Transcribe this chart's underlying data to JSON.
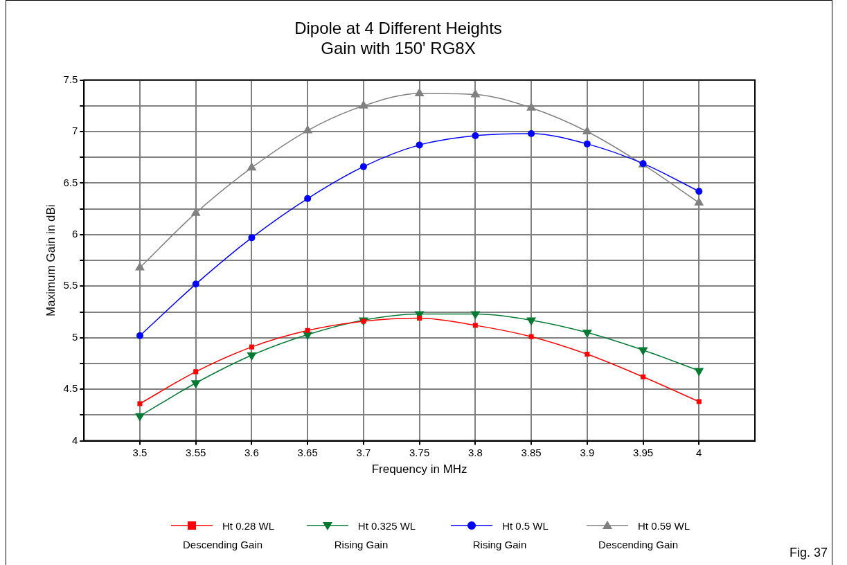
{
  "chart_data": {
    "type": "line",
    "title": "Dipole at 4 Different Heights",
    "subtitle": "Gain with 150' RG8X",
    "xlabel": "Frequency in MHz",
    "ylabel": "Maximum Gain in dBi",
    "x": [
      3.5,
      3.55,
      3.6,
      3.65,
      3.7,
      3.75,
      3.8,
      3.85,
      3.9,
      3.95,
      4
    ],
    "series": [
      {
        "name": "Ht 0.28 WL\nDescending Gain",
        "color": "#ff0000",
        "marker": "square",
        "values": [
          4.36,
          4.67,
          4.91,
          5.07,
          5.16,
          5.19,
          5.12,
          5.01,
          4.84,
          4.62,
          4.38
        ]
      },
      {
        "name": "Ht 0.325 WL\nRising Gain",
        "color": "#007a33",
        "marker": "triangle-down",
        "values": [
          4.24,
          4.56,
          4.83,
          5.03,
          5.17,
          5.23,
          5.23,
          5.17,
          5.05,
          4.88,
          4.68
        ]
      },
      {
        "name": "Ht 0.5 WL\nRising Gain",
        "color": "#0000ff",
        "marker": "circle",
        "values": [
          5.02,
          5.52,
          5.97,
          6.35,
          6.66,
          6.87,
          6.96,
          6.98,
          6.88,
          6.69,
          6.42
        ]
      },
      {
        "name": "Ht 0.59 WL\nDescending Gain",
        "color": "#808080",
        "marker": "triangle",
        "values": [
          5.68,
          6.21,
          6.65,
          7.01,
          7.25,
          7.37,
          7.36,
          7.23,
          7.0,
          6.68,
          6.31
        ]
      }
    ],
    "xlim": [
      3.45,
      4.05
    ],
    "xticks": [
      3.5,
      3.55,
      3.6,
      3.65,
      3.7,
      3.75,
      3.8,
      3.85,
      3.9,
      3.95,
      4
    ],
    "ylim": [
      4,
      7.5
    ],
    "yticks": [
      4,
      {
        "value": 4.25,
        "label": null
      },
      4.5,
      {
        "value": 4.75,
        "label": null
      },
      5,
      {
        "value": 5.25,
        "label": null
      },
      5.5,
      {
        "value": 5.75,
        "label": null
      },
      6,
      {
        "value": 6.25,
        "label": null
      },
      6.5,
      {
        "value": 6.75,
        "label": null
      },
      7,
      {
        "value": 7.25,
        "label": null
      },
      7.5
    ],
    "grid": true,
    "legend": "bottom",
    "line_style": "solid",
    "annotations": [
      "Fig. 37"
    ]
  }
}
